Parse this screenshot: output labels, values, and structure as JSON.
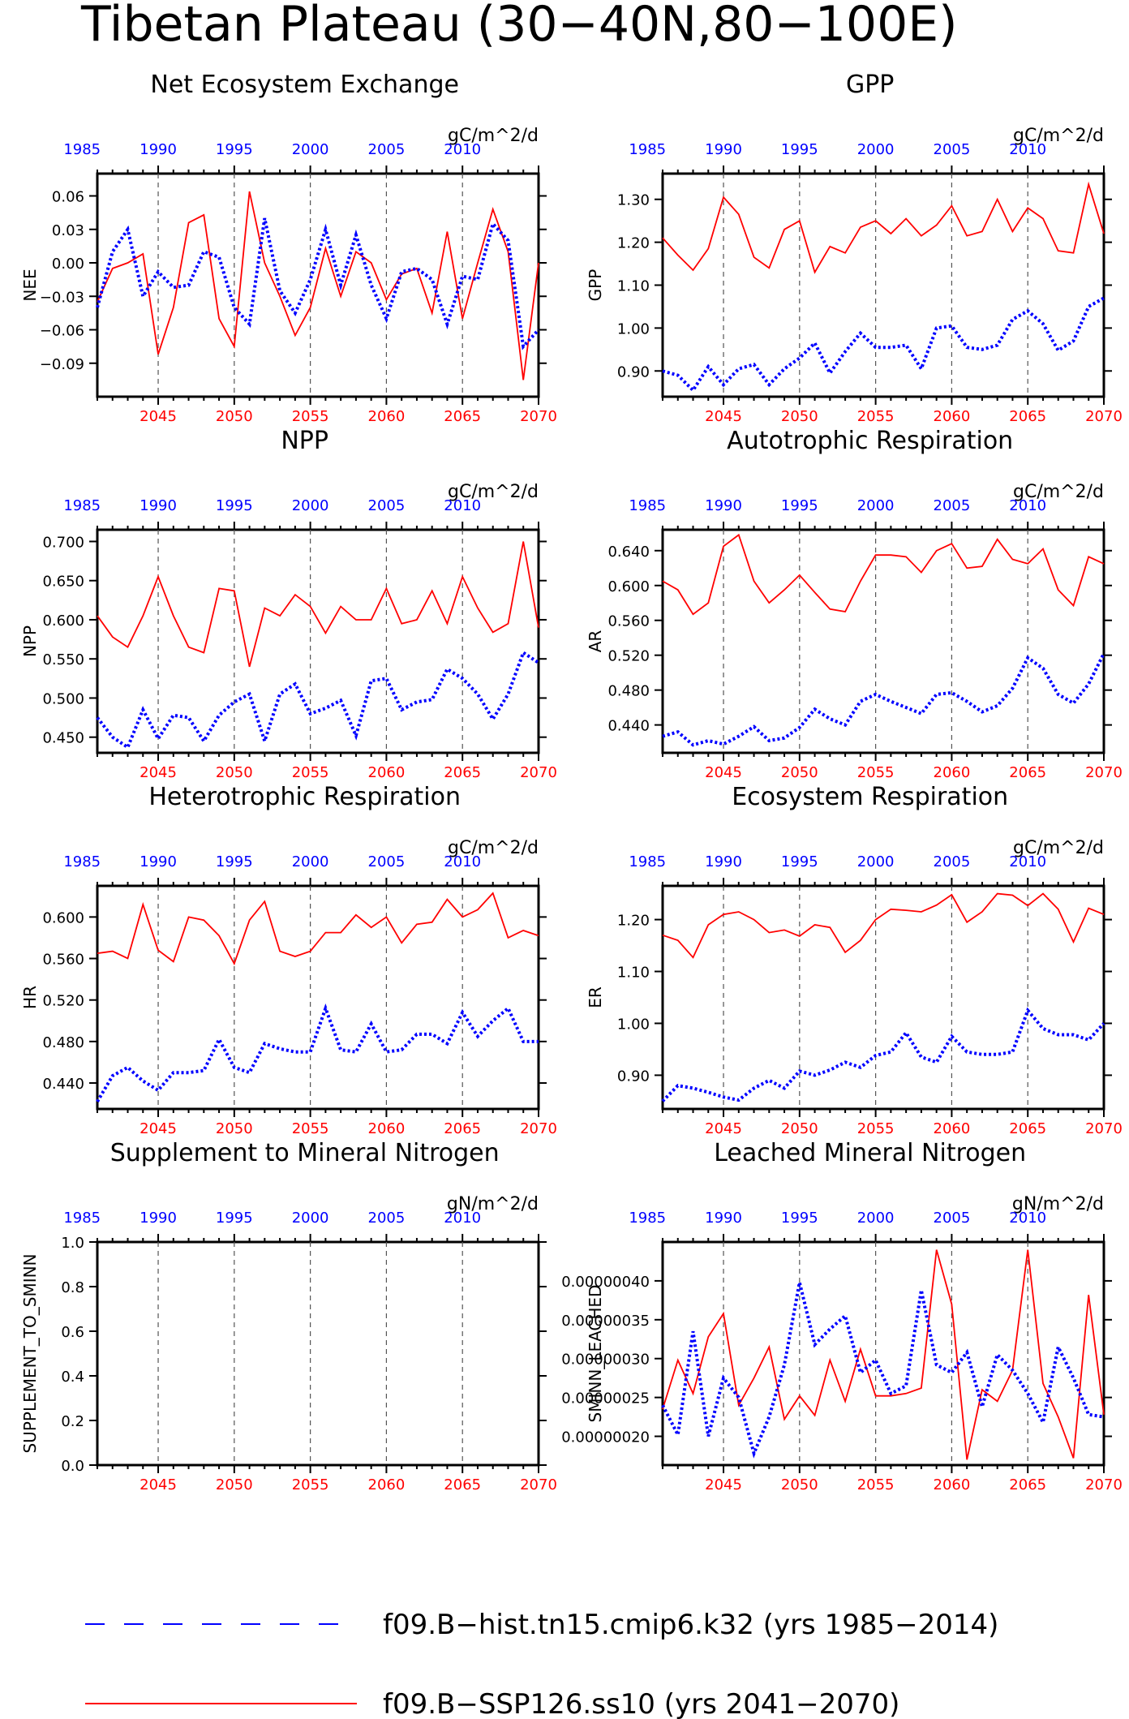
{
  "title": "Tibetan Plateau (30−40N,80−100E)",
  "colors": {
    "future": "#ff0000",
    "hist": "#0000ff",
    "axis": "#000000"
  },
  "legend": [
    {
      "name": "f09.B−hist.tn15.cmip6.k32 (yrs 1985−2014)",
      "color": "#0000ff",
      "style": "dashed"
    },
    {
      "name": "f09.B−SSP126.ss10 (yrs 2041−2070)",
      "color": "#ff0000",
      "style": "solid"
    }
  ],
  "chart_data": [
    {
      "type": "line",
      "title": "Net Ecosystem Exchange",
      "ylabel": "NEE",
      "units": "gC/m^2/d",
      "ylim": [
        -0.12,
        0.08
      ],
      "yticks": [
        0.06,
        0.03,
        0.0,
        -0.03,
        -0.06,
        -0.09
      ],
      "ytick_labels": [
        "0.06",
        "0.03",
        "0.00",
        "−0.03",
        "−0.06",
        "−0.09"
      ],
      "x_bottom_ticks": [
        "2045",
        "2050",
        "2055",
        "2060",
        "2065",
        "2070"
      ],
      "x_top_ticks": [
        "1985",
        "1990",
        "1995",
        "2000",
        "2005",
        "2010"
      ],
      "series": [
        {
          "name": "f09.B-SSP126.ss10 (yrs 2041-2070)",
          "values": [
            -0.035,
            -0.005,
            0.0,
            0.008,
            -0.082,
            -0.04,
            0.036,
            0.043,
            -0.05,
            -0.075,
            0.064,
            0.0,
            -0.03,
            -0.065,
            -0.04,
            0.013,
            -0.03,
            0.01,
            0.0,
            -0.033,
            -0.01,
            -0.005,
            -0.045,
            0.028,
            -0.05,
            0.0,
            0.048,
            0.01,
            -0.105,
            0.0
          ]
        },
        {
          "name": "f09.B-hist.tn15.cmip6.k32 (yrs 1985-2014)",
          "values": [
            -0.04,
            0.01,
            0.03,
            -0.03,
            -0.008,
            -0.022,
            -0.02,
            0.01,
            0.005,
            -0.04,
            -0.055,
            0.04,
            -0.025,
            -0.045,
            -0.015,
            0.03,
            -0.02,
            0.025,
            -0.02,
            -0.05,
            -0.008,
            -0.005,
            -0.015,
            -0.055,
            -0.012,
            -0.015,
            0.035,
            0.02,
            -0.075,
            -0.06
          ]
        }
      ]
    },
    {
      "type": "line",
      "title": "GPP",
      "ylabel": "GPP",
      "units": "gC/m^2/d",
      "ylim": [
        0.84,
        1.36
      ],
      "yticks": [
        1.3,
        1.2,
        1.1,
        1.0,
        0.9
      ],
      "ytick_labels": [
        "1.30",
        "1.20",
        "1.10",
        "1.00",
        "0.90"
      ],
      "x_bottom_ticks": [
        "2045",
        "2050",
        "2055",
        "2060",
        "2065",
        "2070"
      ],
      "x_top_ticks": [
        "1985",
        "1990",
        "1995",
        "2000",
        "2005",
        "2010"
      ],
      "series": [
        {
          "name": "f09.B-SSP126.ss10 (yrs 2041-2070)",
          "values": [
            1.21,
            1.17,
            1.135,
            1.185,
            1.305,
            1.265,
            1.165,
            1.14,
            1.23,
            1.25,
            1.13,
            1.19,
            1.175,
            1.235,
            1.25,
            1.22,
            1.255,
            1.215,
            1.24,
            1.285,
            1.215,
            1.225,
            1.3,
            1.225,
            1.28,
            1.255,
            1.18,
            1.175,
            1.335,
            1.22
          ]
        },
        {
          "name": "f09.B-hist.tn15.cmip6.k32 (yrs 1985-2014)",
          "values": [
            0.9,
            0.89,
            0.855,
            0.91,
            0.868,
            0.905,
            0.915,
            0.868,
            0.905,
            0.93,
            0.965,
            0.895,
            0.945,
            0.988,
            0.955,
            0.955,
            0.96,
            0.905,
            1.0,
            1.005,
            0.955,
            0.95,
            0.96,
            1.02,
            1.04,
            1.01,
            0.948,
            0.97,
            1.05,
            1.07
          ]
        }
      ]
    },
    {
      "type": "line",
      "title": "NPP",
      "ylabel": "NPP",
      "units": "gC/m^2/d",
      "ylim": [
        0.43,
        0.715
      ],
      "yticks": [
        0.7,
        0.65,
        0.6,
        0.55,
        0.5,
        0.45
      ],
      "ytick_labels": [
        "0.700",
        "0.650",
        "0.600",
        "0.550",
        "0.500",
        "0.450"
      ],
      "x_bottom_ticks": [
        "2045",
        "2050",
        "2055",
        "2060",
        "2065",
        "2070"
      ],
      "x_top_ticks": [
        "1985",
        "1990",
        "1995",
        "2000",
        "2005",
        "2010"
      ],
      "series": [
        {
          "name": "f09.B-SSP126.ss10 (yrs 2041-2070)",
          "values": [
            0.605,
            0.578,
            0.565,
            0.605,
            0.655,
            0.605,
            0.565,
            0.558,
            0.64,
            0.637,
            0.54,
            0.615,
            0.605,
            0.632,
            0.617,
            0.583,
            0.617,
            0.6,
            0.6,
            0.64,
            0.595,
            0.6,
            0.637,
            0.595,
            0.655,
            0.615,
            0.584,
            0.595,
            0.7,
            0.59
          ]
        },
        {
          "name": "f09.B-hist.tn15.cmip6.k32 (yrs 1985-2014)",
          "values": [
            0.475,
            0.45,
            0.437,
            0.485,
            0.448,
            0.478,
            0.475,
            0.445,
            0.478,
            0.495,
            0.505,
            0.445,
            0.505,
            0.518,
            0.48,
            0.487,
            0.497,
            0.452,
            0.522,
            0.525,
            0.485,
            0.495,
            0.498,
            0.537,
            0.525,
            0.505,
            0.473,
            0.505,
            0.558,
            0.545
          ]
        }
      ]
    },
    {
      "type": "line",
      "title": "Autotrophic Respiration",
      "ylabel": "AR",
      "units": "gC/m^2/d",
      "ylim": [
        0.408,
        0.664
      ],
      "yticks": [
        0.64,
        0.6,
        0.56,
        0.52,
        0.48,
        0.44
      ],
      "ytick_labels": [
        "0.640",
        "0.600",
        "0.560",
        "0.520",
        "0.480",
        "0.440"
      ],
      "x_bottom_ticks": [
        "2045",
        "2050",
        "2055",
        "2060",
        "2065",
        "2070"
      ],
      "x_top_ticks": [
        "1985",
        "1990",
        "1995",
        "2000",
        "2005",
        "2010"
      ],
      "series": [
        {
          "name": "f09.B-SSP126.ss10 (yrs 2041-2070)",
          "values": [
            0.605,
            0.595,
            0.567,
            0.58,
            0.645,
            0.658,
            0.605,
            0.58,
            0.595,
            0.612,
            0.592,
            0.573,
            0.57,
            0.605,
            0.635,
            0.635,
            0.633,
            0.615,
            0.64,
            0.648,
            0.62,
            0.622,
            0.653,
            0.63,
            0.625,
            0.642,
            0.595,
            0.577,
            0.633,
            0.625
          ]
        },
        {
          "name": "f09.B-hist.tn15.cmip6.k32 (yrs 1985-2014)",
          "values": [
            0.427,
            0.432,
            0.417,
            0.422,
            0.418,
            0.427,
            0.438,
            0.422,
            0.425,
            0.437,
            0.458,
            0.447,
            0.44,
            0.467,
            0.475,
            0.467,
            0.46,
            0.453,
            0.475,
            0.477,
            0.467,
            0.455,
            0.462,
            0.482,
            0.517,
            0.505,
            0.475,
            0.465,
            0.487,
            0.522
          ]
        }
      ]
    },
    {
      "type": "line",
      "title": "Heterotrophic Respiration",
      "ylabel": "HR",
      "units": "gC/m^2/d",
      "ylim": [
        0.415,
        0.63
      ],
      "yticks": [
        0.6,
        0.56,
        0.52,
        0.48,
        0.44
      ],
      "ytick_labels": [
        "0.600",
        "0.560",
        "0.520",
        "0.480",
        "0.440"
      ],
      "x_bottom_ticks": [
        "2045",
        "2050",
        "2055",
        "2060",
        "2065",
        "2070"
      ],
      "x_top_ticks": [
        "1985",
        "1990",
        "1995",
        "2000",
        "2005",
        "2010"
      ],
      "series": [
        {
          "name": "f09.B-SSP126.ss10 (yrs 2041-2070)",
          "values": [
            0.565,
            0.567,
            0.56,
            0.612,
            0.568,
            0.557,
            0.6,
            0.597,
            0.582,
            0.555,
            0.597,
            0.615,
            0.567,
            0.562,
            0.567,
            0.585,
            0.585,
            0.602,
            0.59,
            0.6,
            0.575,
            0.593,
            0.595,
            0.617,
            0.6,
            0.607,
            0.623,
            0.58,
            0.587,
            0.582
          ]
        },
        {
          "name": "f09.B-hist.tn15.cmip6.k32 (yrs 1985-2014)",
          "values": [
            0.422,
            0.447,
            0.455,
            0.442,
            0.433,
            0.45,
            0.45,
            0.452,
            0.482,
            0.455,
            0.45,
            0.478,
            0.473,
            0.47,
            0.47,
            0.512,
            0.472,
            0.47,
            0.497,
            0.47,
            0.472,
            0.487,
            0.487,
            0.478,
            0.508,
            0.485,
            0.5,
            0.512,
            0.48,
            0.48
          ]
        }
      ]
    },
    {
      "type": "line",
      "title": "Ecosystem Respiration",
      "ylabel": "ER",
      "units": "gC/m^2/d",
      "ylim": [
        0.835,
        1.265
      ],
      "yticks": [
        1.2,
        1.1,
        1.0,
        0.9
      ],
      "ytick_labels": [
        "1.20",
        "1.10",
        "1.00",
        "0.90"
      ],
      "x_bottom_ticks": [
        "2045",
        "2050",
        "2055",
        "2060",
        "2065",
        "2070"
      ],
      "x_top_ticks": [
        "1985",
        "1990",
        "1995",
        "2000",
        "2005",
        "2010"
      ],
      "series": [
        {
          "name": "f09.B-SSP126.ss10 (yrs 2041-2070)",
          "values": [
            1.17,
            1.16,
            1.127,
            1.19,
            1.21,
            1.215,
            1.2,
            1.175,
            1.18,
            1.168,
            1.19,
            1.185,
            1.137,
            1.16,
            1.2,
            1.22,
            1.218,
            1.215,
            1.228,
            1.248,
            1.195,
            1.215,
            1.25,
            1.247,
            1.227,
            1.25,
            1.22,
            1.157,
            1.222,
            1.21
          ]
        },
        {
          "name": "f09.B-hist.tn15.cmip6.k32 (yrs 1985-2014)",
          "values": [
            0.85,
            0.88,
            0.875,
            0.867,
            0.858,
            0.852,
            0.875,
            0.89,
            0.875,
            0.908,
            0.9,
            0.91,
            0.925,
            0.915,
            0.938,
            0.945,
            0.982,
            0.935,
            0.925,
            0.975,
            0.945,
            0.94,
            0.94,
            0.945,
            1.025,
            0.99,
            0.978,
            0.978,
            0.968,
            1.0
          ]
        }
      ]
    },
    {
      "type": "line",
      "title": "Supplement to Mineral Nitrogen",
      "ylabel": "SUPPLEMENT_TO_SMINN",
      "units": "gN/m^2/d",
      "ylim": [
        0.0,
        1.0
      ],
      "yticks": [
        1.0,
        0.8,
        0.6,
        0.4,
        0.2,
        0.0
      ],
      "ytick_labels": [
        "1.0",
        "0.8",
        "0.6",
        "0.4",
        "0.2",
        "0.0"
      ],
      "x_bottom_ticks": [
        "2045",
        "2050",
        "2055",
        "2060",
        "2065",
        "2070"
      ],
      "x_top_ticks": [
        "1985",
        "1990",
        "1995",
        "2000",
        "2005",
        "2010"
      ],
      "series": []
    },
    {
      "type": "line",
      "title": "Leached Mineral Nitrogen",
      "ylabel": "SMINN_LEACHED",
      "units": "gN/m^2/d",
      "ylim": [
        1.63e-07,
        4.5e-07
      ],
      "yticks": [
        4e-07,
        3.5e-07,
        3e-07,
        2.5e-07,
        2e-07
      ],
      "ytick_labels": [
        "0.00000040",
        "0.00000035",
        "0.00000030",
        "0.00000025",
        "0.00000020"
      ],
      "x_bottom_ticks": [
        "2045",
        "2050",
        "2055",
        "2060",
        "2065",
        "2070"
      ],
      "x_top_ticks": [
        "1985",
        "1990",
        "1995",
        "2000",
        "2005",
        "2010"
      ],
      "series": [
        {
          "name": "f09.B-SSP126.ss10 (yrs 2041-2070)",
          "values": [
            2.35e-07,
            2.98e-07,
            2.55e-07,
            3.28e-07,
            3.58e-07,
            2.4e-07,
            2.75e-07,
            3.15e-07,
            2.22e-07,
            2.52e-07,
            2.27e-07,
            2.98e-07,
            2.45e-07,
            3.12e-07,
            2.52e-07,
            2.52e-07,
            2.55e-07,
            2.62e-07,
            4.4e-07,
            3.7e-07,
            1.7e-07,
            2.6e-07,
            2.45e-07,
            2.85e-07,
            4.4e-07,
            2.68e-07,
            2.25e-07,
            1.72e-07,
            3.82e-07,
            2.28e-07
          ]
        },
        {
          "name": "f09.B-hist.tn15.cmip6.k32 (yrs 1985-2014)",
          "values": [
            2.4e-07,
            2.02e-07,
            3.35e-07,
            2e-07,
            2.75e-07,
            2.5e-07,
            1.78e-07,
            2.25e-07,
            2.92e-07,
            3.98e-07,
            3.18e-07,
            3.38e-07,
            3.55e-07,
            2.82e-07,
            2.98e-07,
            2.55e-07,
            2.65e-07,
            3.88e-07,
            2.92e-07,
            2.82e-07,
            3.08e-07,
            2.38e-07,
            3.05e-07,
            2.85e-07,
            2.55e-07,
            2.18e-07,
            3.15e-07,
            2.75e-07,
            2.28e-07,
            2.25e-07
          ]
        }
      ]
    }
  ]
}
